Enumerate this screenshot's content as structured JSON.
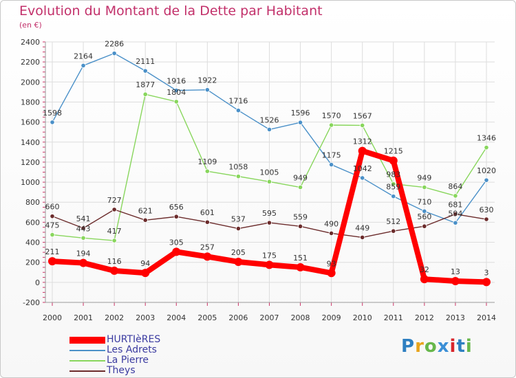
{
  "title": "Evolution du Montant de la Dette par Habitant",
  "subtitle": "(en €)",
  "logo": {
    "text": "Proxiti",
    "letter_colors": [
      "#2d7fc1",
      "#e8a41c",
      "#67b74b",
      "#3b8fd6",
      "#d8262c",
      "#2d7fc1",
      "#67b74b"
    ]
  },
  "chart_data": {
    "type": "line",
    "x": [
      "2000",
      "2001",
      "2002",
      "2003",
      "2004",
      "2005",
      "2006",
      "2007",
      "2008",
      "2009",
      "2010",
      "2011",
      "2012",
      "2013",
      "2014"
    ],
    "ylim": [
      -200,
      2400
    ],
    "yticks": [
      "-200",
      "0",
      "200",
      "400",
      "600",
      "800",
      "1000",
      "1200",
      "1400",
      "1600",
      "1800",
      "2000",
      "2200",
      "2400"
    ],
    "grid": true,
    "series": [
      {
        "name": "Les Adrets",
        "color": "#4a90c8",
        "weight": "thin",
        "values": [
          1598,
          2164,
          2286,
          2111,
          1916,
          1922,
          1716,
          1526,
          1596,
          1175,
          1042,
          859,
          710,
          594,
          1020
        ],
        "labels": [
          "1598",
          "2164",
          "2286",
          "2111",
          "1916",
          "1922",
          "1716",
          "1526",
          "1596",
          "1175",
          "1042",
          "859",
          "710",
          "594",
          "1020"
        ]
      },
      {
        "name": "La Pierre",
        "color": "#88d65c",
        "weight": "thin",
        "values": [
          475,
          443,
          417,
          1877,
          1804,
          1109,
          1058,
          1005,
          949,
          1570,
          1567,
          983,
          949,
          864,
          1346
        ],
        "labels": [
          "475",
          "443",
          "417",
          "1877",
          "1804",
          "1109",
          "1058",
          "1005",
          "949",
          "1570",
          "1567",
          "983",
          "949",
          "864",
          "1346"
        ]
      },
      {
        "name": "Theys",
        "color": "#6b2b2b",
        "weight": "thin",
        "values": [
          660,
          541,
          727,
          621,
          656,
          601,
          537,
          595,
          559,
          490,
          449,
          512,
          560,
          681,
          630
        ],
        "labels": [
          "660",
          "541",
          "727",
          "621",
          "656",
          "601",
          "537",
          "595",
          "559",
          "490",
          "449",
          "512",
          "560",
          "681",
          "630"
        ]
      },
      {
        "name": "HURTIèRES",
        "color": "#ff0000",
        "weight": "thick",
        "values": [
          211,
          194,
          116,
          94,
          305,
          257,
          205,
          175,
          151,
          93,
          1312,
          1215,
          32,
          13,
          3
        ],
        "labels": [
          "211",
          "194",
          "116",
          "94",
          "305",
          "257",
          "205",
          "175",
          "151",
          "93",
          "1312",
          "1215",
          "32",
          "13",
          "3"
        ]
      }
    ]
  },
  "legend": [
    {
      "label": "HURTIèRES",
      "color": "#ff0000",
      "weight": "thick"
    },
    {
      "label": "Les Adrets",
      "color": "#4a90c8",
      "weight": "thin"
    },
    {
      "label": "La Pierre",
      "color": "#88d65c",
      "weight": "thin"
    },
    {
      "label": "Theys",
      "color": "#6b2b2b",
      "weight": "thin"
    }
  ]
}
